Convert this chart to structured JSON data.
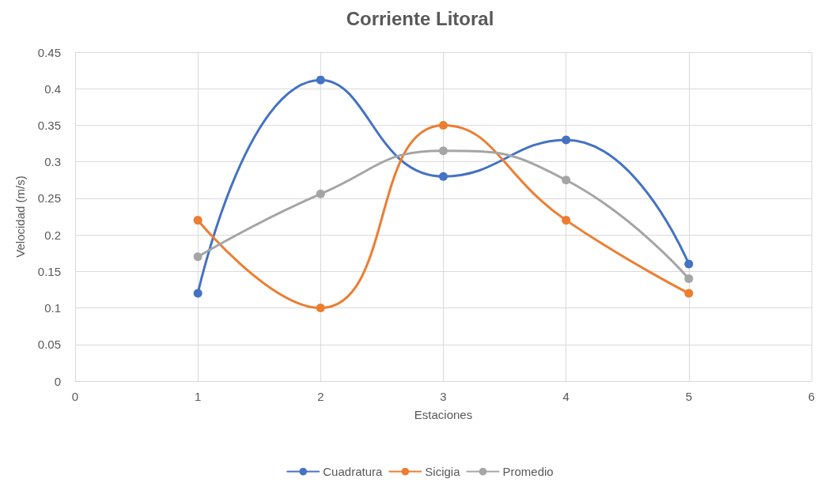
{
  "chart_data": {
    "type": "line",
    "title": "Corriente Litoral",
    "xlabel": "Estaciones",
    "ylabel": "Velocidad (m/s)",
    "x": [
      1,
      2,
      3,
      4,
      5
    ],
    "series": [
      {
        "name": "Cuadratura",
        "color": "#4472c4",
        "values": [
          0.12,
          0.412,
          0.28,
          0.33,
          0.16
        ]
      },
      {
        "name": "Sicigia",
        "color": "#ed7d31",
        "values": [
          0.22,
          0.1,
          0.35,
          0.22,
          0.12
        ]
      },
      {
        "name": "Promedio",
        "color": "#a5a5a5",
        "values": [
          0.17,
          0.256,
          0.315,
          0.275,
          0.14
        ]
      }
    ],
    "xlim": [
      0,
      6
    ],
    "xticks": [
      0,
      1,
      2,
      3,
      4,
      5,
      6
    ],
    "ylim": [
      0,
      0.45
    ],
    "yticks": [
      0,
      0.05,
      0.1,
      0.15,
      0.2,
      0.25,
      0.3,
      0.35,
      0.4,
      0.45
    ],
    "grid": true,
    "legend": "bottom",
    "marker": "circle",
    "line_style": "solid"
  }
}
